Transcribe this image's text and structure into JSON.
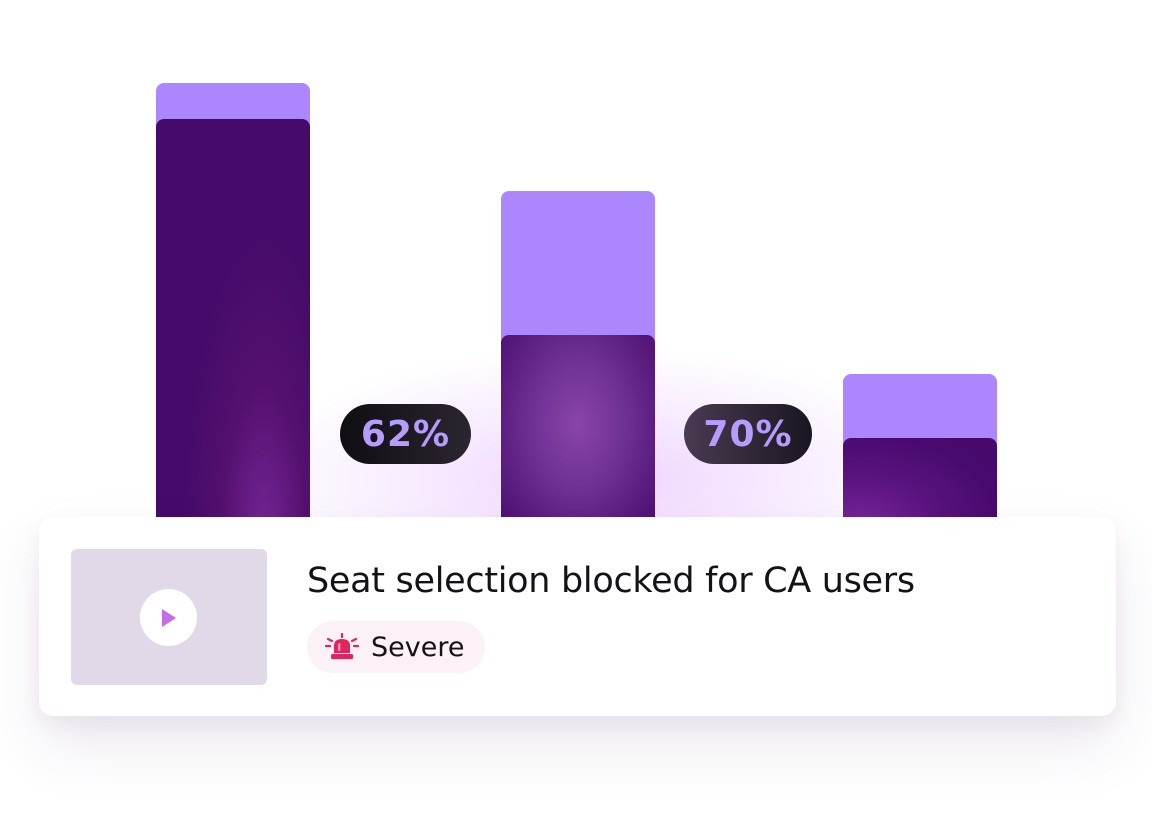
{
  "chart": {
    "bars": [
      {
        "outer_fraction": 1.0,
        "inner_fraction": 0.92
      },
      {
        "outer_fraction": 0.76,
        "inner_fraction": 0.44
      },
      {
        "outer_fraction": 0.35,
        "inner_fraction": 0.21
      }
    ],
    "conversion_1": "62%",
    "conversion_2": "70%",
    "colors": {
      "outer": "#ab86fd",
      "inner": "#450a6a",
      "pill_text": "#b79cff"
    }
  },
  "card": {
    "title": "Seat selection blocked for CA users",
    "severity": {
      "label": "Severe",
      "icon": "siren-icon",
      "color": "#e0245e"
    },
    "thumbnail": {
      "icon": "play-icon",
      "icon_color": "#c26ee8"
    }
  }
}
